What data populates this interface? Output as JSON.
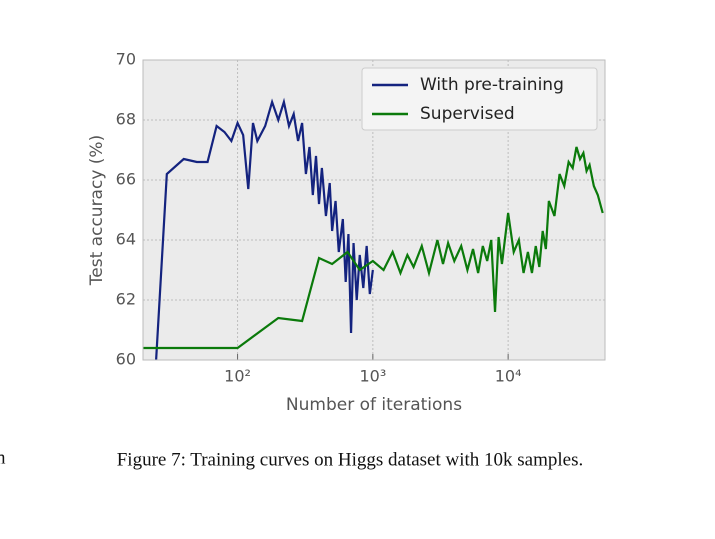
{
  "chart_data": {
    "type": "line",
    "xlabel": "Number of iterations",
    "ylabel": "Test accuracy (%)",
    "xscale": "log",
    "grid": true,
    "legend": "upper right",
    "xlim": [
      20,
      52000
    ],
    "ylim": [
      60,
      70
    ],
    "xticks": [
      {
        "value": 100,
        "label": "10²"
      },
      {
        "value": 1000,
        "label": "10³"
      },
      {
        "value": 10000,
        "label": "10⁴"
      }
    ],
    "yticks": [
      60,
      62,
      64,
      66,
      68,
      70
    ],
    "series": [
      {
        "name": "With pre-training",
        "color": "#14237f",
        "x": [
          25,
          30,
          40,
          50,
          60,
          70,
          80,
          90,
          100,
          110,
          120,
          130,
          140,
          160,
          180,
          200,
          220,
          240,
          260,
          280,
          300,
          320,
          340,
          360,
          380,
          400,
          420,
          450,
          480,
          500,
          530,
          560,
          600,
          630,
          660,
          690,
          720,
          760,
          800,
          850,
          900,
          950,
          1000
        ],
        "values": [
          60,
          66.2,
          66.7,
          66.6,
          66.6,
          67.8,
          67.6,
          67.3,
          67.9,
          67.5,
          65.7,
          67.9,
          67.3,
          67.8,
          68.6,
          68.0,
          68.6,
          67.8,
          68.2,
          67.3,
          67.9,
          66.2,
          67.1,
          65.5,
          66.8,
          65.2,
          66.4,
          64.8,
          65.9,
          64.3,
          65.3,
          63.6,
          64.7,
          62.6,
          64.2,
          60.9,
          63.9,
          62.0,
          63.5,
          62.4,
          63.8,
          62.2,
          63.0
        ]
      },
      {
        "name": "Supervised",
        "color": "#0b7a0b",
        "x": [
          20,
          100,
          200,
          300,
          400,
          500,
          650,
          800,
          1000,
          1200,
          1400,
          1600,
          1800,
          2000,
          2300,
          2600,
          3000,
          3300,
          3600,
          4000,
          4500,
          5000,
          5500,
          6000,
          6500,
          7000,
          7500,
          8000,
          8500,
          9000,
          10000,
          11000,
          12000,
          13000,
          14000,
          15000,
          16000,
          17000,
          18000,
          19000,
          20000,
          22000,
          24000,
          26000,
          28000,
          30000,
          32000,
          34000,
          36000,
          38000,
          40000,
          43000,
          46000,
          50000
        ],
        "values": [
          60.4,
          60.4,
          61.4,
          61.3,
          63.4,
          63.2,
          63.6,
          63.0,
          63.3,
          63.0,
          63.6,
          62.9,
          63.5,
          63.1,
          63.8,
          62.9,
          64.0,
          63.2,
          63.9,
          63.3,
          63.8,
          63.0,
          63.7,
          62.9,
          63.8,
          63.3,
          64.0,
          61.6,
          64.1,
          63.2,
          64.9,
          63.6,
          64.0,
          62.9,
          63.6,
          62.9,
          63.8,
          63.1,
          64.3,
          63.7,
          65.3,
          64.8,
          66.2,
          65.8,
          66.6,
          66.4,
          67.1,
          66.7,
          66.9,
          66.3,
          66.5,
          65.8,
          65.5,
          64.9
        ]
      }
    ]
  },
  "caption": "Figure 7: Training curves on Higgs dataset with 10k samples.",
  "margin_text": "n"
}
